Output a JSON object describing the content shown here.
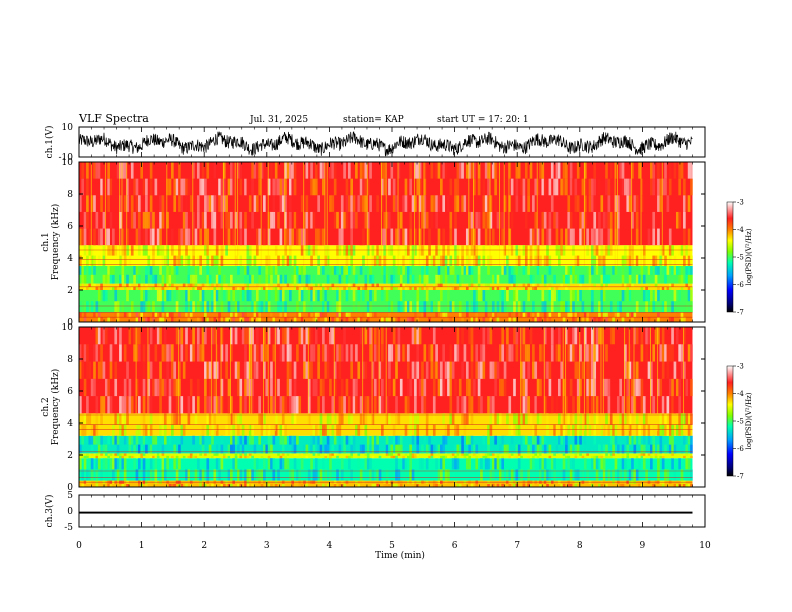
{
  "header": {
    "title": "VLF Spectra",
    "date": "Jul. 31, 2025",
    "station": "station= KAP",
    "start": "start UT = 17: 20: 1"
  },
  "chart_data": [
    {
      "type": "line",
      "id": "ch1-waveform",
      "ylabel": "ch.1(V)",
      "ylim": [
        -10,
        10
      ],
      "yticks": [
        "10",
        "-10"
      ],
      "xlim": [
        0,
        10
      ],
      "x_extent_min": [
        0,
        9.8
      ],
      "series": [
        {
          "values_note": "dense waveform oscillating roughly between -8 and 6 V",
          "color": "#000000"
        }
      ]
    },
    {
      "type": "heatmap",
      "id": "ch1-spectrogram",
      "ylabel": "ch.1\nFrequency (kHz)",
      "ylabel_line1": "ch.1",
      "ylabel_line2": "Frequency (kHz)",
      "ylim": [
        0,
        10
      ],
      "yticks": [
        "0",
        "2",
        "4",
        "6",
        "8",
        "10"
      ],
      "xlim": [
        0,
        10
      ],
      "x_extent_min": [
        0,
        9.8
      ],
      "colorbar": {
        "label": "log(PSD)(V²/Hz)",
        "range": [
          -7,
          -3
        ],
        "ticks": [
          "-3",
          "-4",
          "-5",
          "-6",
          "-7"
        ]
      },
      "bands_khz": [
        {
          "range": [
            0,
            0.6
          ],
          "log_psd": -4.0
        },
        {
          "range": [
            0.6,
            2.0
          ],
          "log_psd": -5.0
        },
        {
          "range": [
            2.0,
            2.4
          ],
          "log_psd": -4.3
        },
        {
          "range": [
            2.4,
            3.5
          ],
          "log_psd": -5.0
        },
        {
          "range": [
            3.5,
            4.8
          ],
          "log_psd": -4.4
        },
        {
          "range": [
            4.8,
            10
          ],
          "log_psd": -3.6
        }
      ]
    },
    {
      "type": "heatmap",
      "id": "ch2-spectrogram",
      "ylabel": "ch.2\nFrequency (kHz)",
      "ylabel_line1": "ch.2",
      "ylabel_line2": "Frequency (kHz)",
      "ylim": [
        0,
        10
      ],
      "yticks": [
        "0",
        "2",
        "4",
        "6",
        "8",
        "10"
      ],
      "xlim": [
        0,
        10
      ],
      "x_extent_min": [
        0,
        9.8
      ],
      "colorbar": {
        "label": "log(PSD)(V²/Hz)",
        "range": [
          -7,
          -3
        ],
        "ticks": [
          "-3",
          "-4",
          "-5",
          "-6",
          "-7"
        ]
      },
      "bands_khz": [
        {
          "range": [
            0,
            0.4
          ],
          "log_psd": -4.2
        },
        {
          "range": [
            0.4,
            1.8
          ],
          "log_psd": -5.2
        },
        {
          "range": [
            1.8,
            2.1
          ],
          "log_psd": -4.5
        },
        {
          "range": [
            2.1,
            3.2
          ],
          "log_psd": -5.3
        },
        {
          "range": [
            3.2,
            4.6
          ],
          "log_psd": -4.3
        },
        {
          "range": [
            4.6,
            10
          ],
          "log_psd": -3.6
        }
      ]
    },
    {
      "type": "line",
      "id": "ch3-waveform",
      "ylabel": "ch.3(V)",
      "ylim": [
        -5,
        5
      ],
      "yticks": [
        "5",
        "0",
        "-5"
      ],
      "xlim": [
        0,
        10
      ],
      "x_extent_min": [
        0,
        9.8
      ],
      "series": [
        {
          "values_note": "flat thick trace near -0.5 V",
          "center": -0.5,
          "amplitude": 0.3,
          "color": "#000000"
        }
      ]
    }
  ],
  "xaxis": {
    "label": "Time (min)",
    "ticks": [
      "0",
      "1",
      "2",
      "3",
      "4",
      "5",
      "6",
      "7",
      "8",
      "9",
      "10"
    ]
  },
  "colors": {
    "colormap": [
      "#000080",
      "#0000ff",
      "#00a0ff",
      "#00ffb0",
      "#80ff00",
      "#ffff00",
      "#ff8000",
      "#ff2020",
      "#ffffff"
    ]
  }
}
